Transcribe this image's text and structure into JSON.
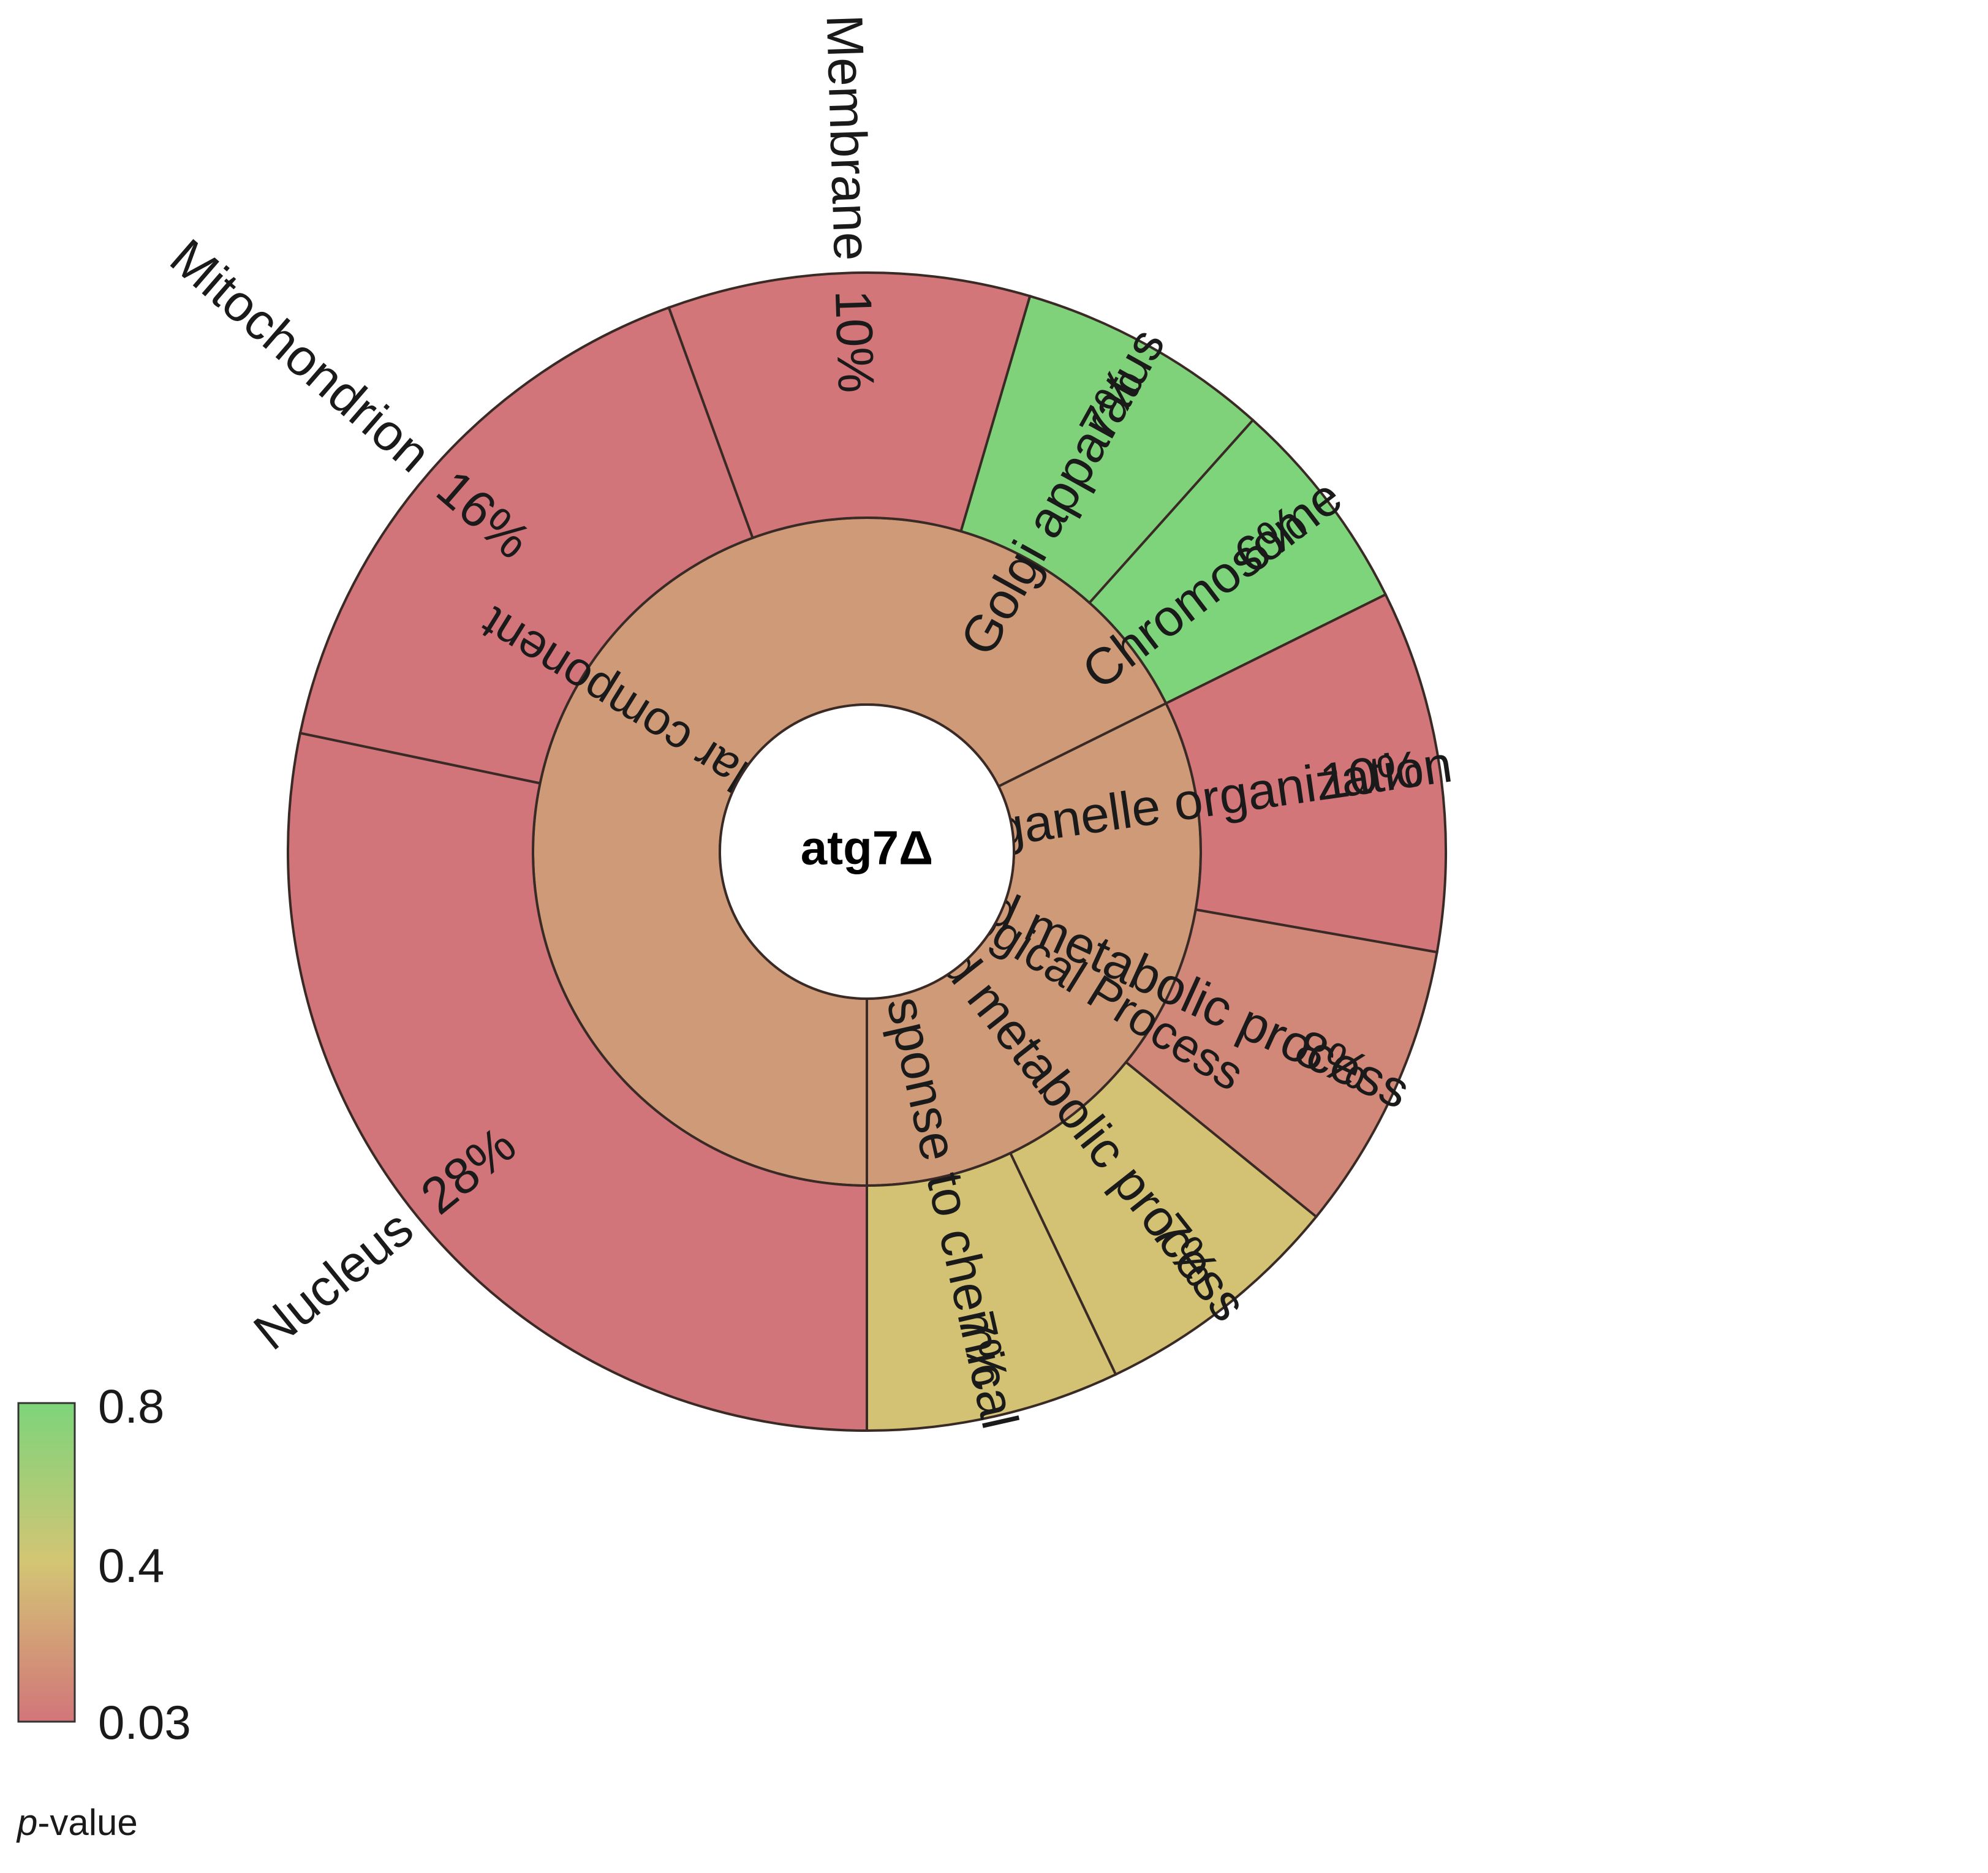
{
  "chart_data": {
    "type": "sunburst",
    "center_label": "atg7Δ",
    "colorbar": {
      "title_italic": "p",
      "title_rest": "-value",
      "ticks": [
        "0.8",
        "0.4",
        "0.03"
      ],
      "colors": {
        "high": "#7dd47a",
        "mid": "#d3c574",
        "low": "#d2757a"
      }
    },
    "categories": [
      {
        "name": "Cellular component",
        "color": "#cf9a78",
        "children": [
          {
            "name": "Nucleus",
            "percent": "28%",
            "value": 28,
            "color": "#d2757a"
          },
          {
            "name": "Mitochondrion",
            "percent": "16%",
            "value": 16,
            "color": "#d2757a"
          },
          {
            "name": "Membrane",
            "percent": "10%",
            "value": 10,
            "color": "#d2767a"
          },
          {
            "name": "Golgi apparatus",
            "percent": "7%",
            "value": 7,
            "color": "#80d27a"
          },
          {
            "name": "Chromosome",
            "percent": "6%",
            "value": 6,
            "color": "#7dd47a"
          }
        ]
      },
      {
        "name": "Biological Process",
        "color": "#cf9a78",
        "children": [
          {
            "name": "Organelle organization",
            "percent": "10%",
            "value": 10,
            "color": "#d2767a"
          },
          {
            "name": "Amino acid metabolic process",
            "percent": "8%",
            "value": 8,
            "color": "#d28878"
          },
          {
            "name": "Lipid metabolic process",
            "percent": "7%",
            "value": 7,
            "color": "#d3c274"
          },
          {
            "name": "Response to chemical",
            "percent": "7%",
            "value": 7,
            "color": "#d3c274"
          }
        ]
      }
    ]
  }
}
